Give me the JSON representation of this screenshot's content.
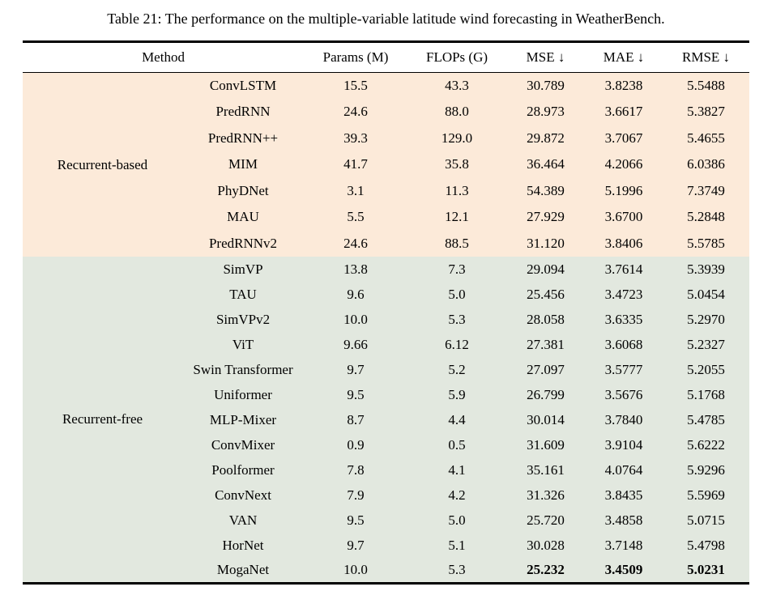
{
  "caption": "Table 21: The performance on the multiple-variable latitude wind forecasting in WeatherBench.",
  "colors": {
    "recurrent_based_bg": "#fcead9",
    "recurrent_free_bg": "#e2e8df",
    "rule": "#000000",
    "text": "#000000",
    "page_bg": "#ffffff"
  },
  "table": {
    "headers": {
      "method": "Method",
      "params": "Params (M)",
      "flops": "FLOPs (G)",
      "mse": "MSE ↓",
      "mae": "MAE ↓",
      "rmse": "RMSE ↓"
    },
    "groups": [
      {
        "label": "Recurrent-based",
        "rows": [
          {
            "method": "ConvLSTM",
            "params": "15.5",
            "flops": "43.3",
            "mse": "30.789",
            "mae": "3.8238",
            "rmse": "5.5488",
            "bold_metrics": false
          },
          {
            "method": "PredRNN",
            "params": "24.6",
            "flops": "88.0",
            "mse": "28.973",
            "mae": "3.6617",
            "rmse": "5.3827",
            "bold_metrics": false
          },
          {
            "method": "PredRNN++",
            "params": "39.3",
            "flops": "129.0",
            "mse": "29.872",
            "mae": "3.7067",
            "rmse": "5.4655",
            "bold_metrics": false
          },
          {
            "method": "MIM",
            "params": "41.7",
            "flops": "35.8",
            "mse": "36.464",
            "mae": "4.2066",
            "rmse": "6.0386",
            "bold_metrics": false
          },
          {
            "method": "PhyDNet",
            "params": "3.1",
            "flops": "11.3",
            "mse": "54.389",
            "mae": "5.1996",
            "rmse": "7.3749",
            "bold_metrics": false
          },
          {
            "method": "MAU",
            "params": "5.5",
            "flops": "12.1",
            "mse": "27.929",
            "mae": "3.6700",
            "rmse": "5.2848",
            "bold_metrics": false
          },
          {
            "method": "PredRNNv2",
            "params": "24.6",
            "flops": "88.5",
            "mse": "31.120",
            "mae": "3.8406",
            "rmse": "5.5785",
            "bold_metrics": false
          }
        ]
      },
      {
        "label": "Recurrent-free",
        "rows": [
          {
            "method": "SimVP",
            "params": "13.8",
            "flops": "7.3",
            "mse": "29.094",
            "mae": "3.7614",
            "rmse": "5.3939",
            "bold_metrics": false
          },
          {
            "method": "TAU",
            "params": "9.6",
            "flops": "5.0",
            "mse": "25.456",
            "mae": "3.4723",
            "rmse": "5.0454",
            "bold_metrics": false
          },
          {
            "method": "SimVPv2",
            "params": "10.0",
            "flops": "5.3",
            "mse": "28.058",
            "mae": "3.6335",
            "rmse": "5.2970",
            "bold_metrics": false
          },
          {
            "method": "ViT",
            "params": "9.66",
            "flops": "6.12",
            "mse": "27.381",
            "mae": "3.6068",
            "rmse": "5.2327",
            "bold_metrics": false
          },
          {
            "method": "Swin Transformer",
            "params": "9.7",
            "flops": "5.2",
            "mse": "27.097",
            "mae": "3.5777",
            "rmse": "5.2055",
            "bold_metrics": false
          },
          {
            "method": "Uniformer",
            "params": "9.5",
            "flops": "5.9",
            "mse": "26.799",
            "mae": "3.5676",
            "rmse": "5.1768",
            "bold_metrics": false
          },
          {
            "method": "MLP-Mixer",
            "params": "8.7",
            "flops": "4.4",
            "mse": "30.014",
            "mae": "3.7840",
            "rmse": "5.4785",
            "bold_metrics": false
          },
          {
            "method": "ConvMixer",
            "params": "0.9",
            "flops": "0.5",
            "mse": "31.609",
            "mae": "3.9104",
            "rmse": "5.6222",
            "bold_metrics": false
          },
          {
            "method": "Poolformer",
            "params": "7.8",
            "flops": "4.1",
            "mse": "35.161",
            "mae": "4.0764",
            "rmse": "5.9296",
            "bold_metrics": false
          },
          {
            "method": "ConvNext",
            "params": "7.9",
            "flops": "4.2",
            "mse": "31.326",
            "mae": "3.8435",
            "rmse": "5.5969",
            "bold_metrics": false
          },
          {
            "method": "VAN",
            "params": "9.5",
            "flops": "5.0",
            "mse": "25.720",
            "mae": "3.4858",
            "rmse": "5.0715",
            "bold_metrics": false
          },
          {
            "method": "HorNet",
            "params": "9.7",
            "flops": "5.1",
            "mse": "30.028",
            "mae": "3.7148",
            "rmse": "5.4798",
            "bold_metrics": false
          },
          {
            "method": "MogaNet",
            "params": "10.0",
            "flops": "5.3",
            "mse": "25.232",
            "mae": "3.4509",
            "rmse": "5.0231",
            "bold_metrics": true
          }
        ]
      }
    ]
  }
}
